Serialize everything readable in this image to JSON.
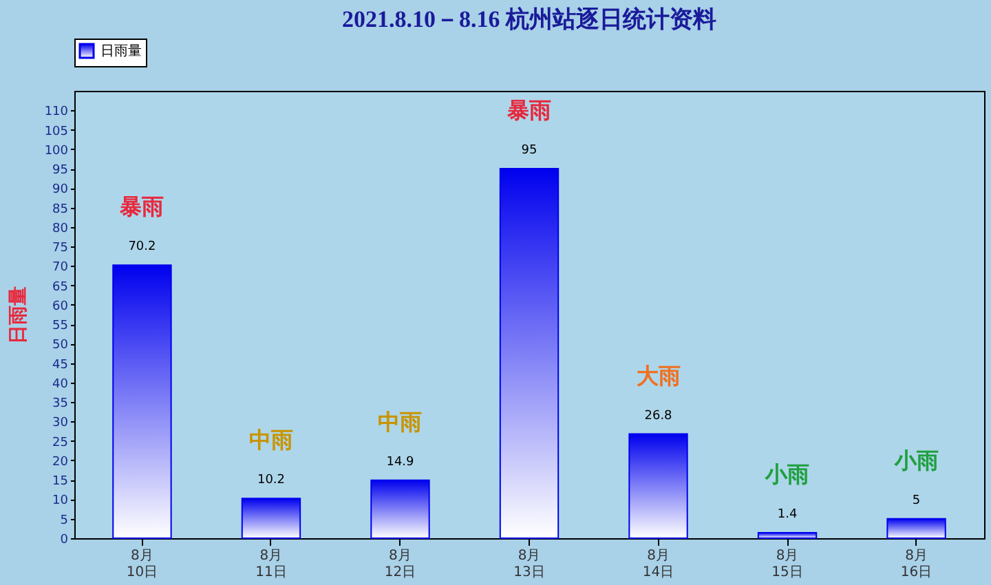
{
  "chart_data": {
    "type": "bar",
    "title": "2021.8.10－8.16 杭州站逐日统计资料",
    "ylabel": "日雨量",
    "categories": [
      "8月\n10日",
      "8月\n11日",
      "8月\n12日",
      "8月\n13日",
      "8月\n14日",
      "8月\n15日",
      "8月\n16日"
    ],
    "series": [
      {
        "name": "日雨量",
        "color": "#0000ee",
        "values": [
          70.2,
          10.2,
          14.9,
          95,
          26.8,
          1.4,
          5
        ]
      }
    ],
    "ylim": [
      0,
      115
    ],
    "yticks": [
      0,
      5,
      10,
      15,
      20,
      25,
      30,
      35,
      40,
      45,
      50,
      55,
      60,
      65,
      70,
      75,
      80,
      85,
      90,
      95,
      100,
      105,
      110
    ],
    "data_labels": true,
    "legend": "top",
    "grid": false,
    "annotations": [
      "暴雨",
      "中雨",
      "中雨",
      "暴雨",
      "大雨",
      "小雨",
      "小雨"
    ]
  }
}
